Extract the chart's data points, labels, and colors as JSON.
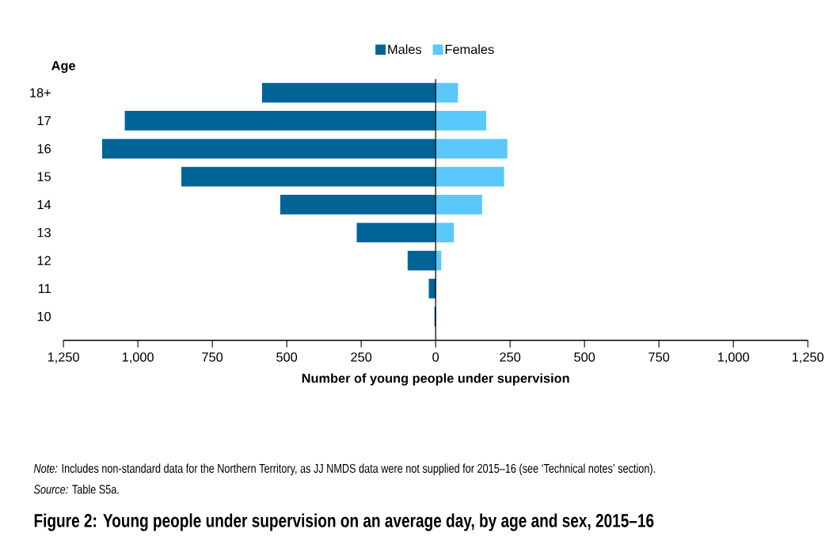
{
  "chart_data": {
    "type": "bar",
    "orientation": "horizontal",
    "title": "Figure 2: Young people under supervision on an average day, by age and sex, 2015–16",
    "xlabel": "Number of young people under supervision",
    "ylabel": "Age",
    "categories": [
      "18+",
      "17",
      "16",
      "15",
      "14",
      "13",
      "12",
      "11",
      "10"
    ],
    "series": [
      {
        "name": "Males",
        "color": "#006496",
        "values": [
          -583,
          -1044,
          -1120,
          -854,
          -522,
          -265,
          -94,
          -23,
          -4
        ]
      },
      {
        "name": "Females",
        "color": "#5ac8fa",
        "values": [
          75,
          170,
          241,
          230,
          156,
          61,
          19,
          0,
          0
        ]
      }
    ],
    "xlim": [
      -1250,
      1250
    ],
    "xticks": [
      {
        "value": -1250,
        "label": "1,250"
      },
      {
        "value": -1000,
        "label": "1,000"
      },
      {
        "value": -750,
        "label": "750"
      },
      {
        "value": -500,
        "label": "500"
      },
      {
        "value": -250,
        "label": "250"
      },
      0,
      250,
      500,
      750,
      {
        "value": 1000,
        "label": "1,000"
      },
      {
        "value": 1250,
        "label": "1,250"
      }
    ],
    "ref_lines": [
      {
        "axis": "x",
        "value": 0,
        "color": "#000000"
      }
    ],
    "legend": "top",
    "grid": false,
    "stacked": true,
    "annotations": [
      "*Note:* Includes non-standard data for the Northern Territory, as JJ NMDS data were not supplied for 2015–16 (see ‘Technical notes’ section).",
      "*Source:* Table S5a."
    ]
  }
}
